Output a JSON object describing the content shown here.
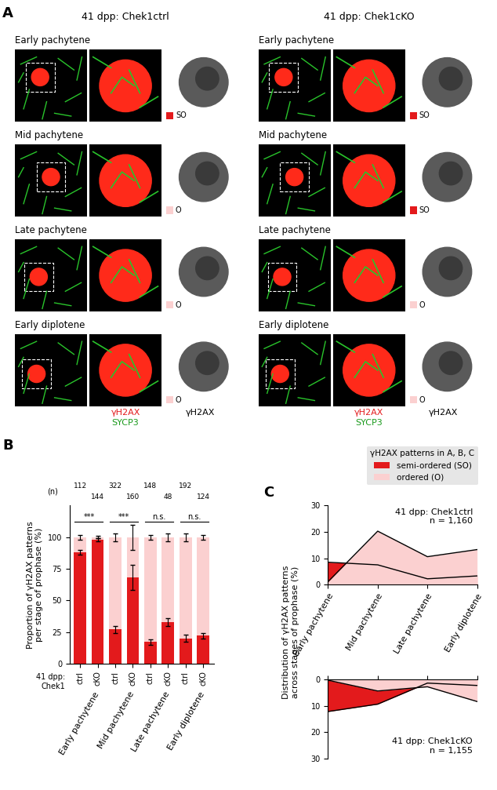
{
  "panel_labels": [
    "A",
    "B",
    "C"
  ],
  "panel_a": {
    "pattern_colors": {
      "SO": "#e31a1c",
      "O": "#fbd0d0"
    },
    "channels": [
      "γH2AX",
      "SYCP3"
    ],
    "gray_label": "γH2AX",
    "columns": [
      {
        "title": "41 dpp: Chek1ctrl",
        "rows": [
          {
            "stage": "Early pachytene",
            "pattern": "SO"
          },
          {
            "stage": "Mid pachytene",
            "pattern": "O"
          },
          {
            "stage": "Late pachytene",
            "pattern": "O"
          },
          {
            "stage": "Early diplotene",
            "pattern": "O"
          }
        ]
      },
      {
        "title": "41 dpp: Chek1cKO",
        "rows": [
          {
            "stage": "Early pachytene",
            "pattern": "SO"
          },
          {
            "stage": "Mid pachytene",
            "pattern": "SO"
          },
          {
            "stage": "Late pachytene",
            "pattern": "O"
          },
          {
            "stage": "Early diplotene",
            "pattern": "O"
          }
        ]
      }
    ]
  },
  "chart_data": [
    {
      "type": "bar",
      "stacked": true,
      "ylabel": "Proportion of γH2AX patterns\nper stage of prophase (%)",
      "categories": [
        "ctrl",
        "cKO",
        "ctrl",
        "cKO",
        "ctrl",
        "cKO",
        "ctrl",
        "cKO"
      ],
      "groups": [
        "Early pachytene",
        "Mid pachytene",
        "Late pachytene",
        "Early diplotene"
      ],
      "group_label": "41 dpp:\nChek1",
      "n_label": "(n)",
      "n": [
        112,
        144,
        322,
        160,
        148,
        48,
        192,
        124
      ],
      "significance": [
        "***",
        "***",
        "n.s.",
        "n.s."
      ],
      "ylim": [
        0,
        125
      ],
      "yticks": [
        0,
        25,
        50,
        75,
        100
      ],
      "legend": "upper right",
      "legend_title": "γH2AX patterns in A, B, C",
      "series": [
        {
          "name": "semi-ordered (SO)",
          "color": "#e31a1c",
          "values": [
            88,
            98,
            27,
            68,
            17,
            33,
            20,
            22
          ],
          "errors": [
            2,
            1,
            3,
            10,
            2,
            3,
            3,
            2
          ]
        },
        {
          "name": "ordered (O)",
          "color": "#fbd0d0",
          "values": [
            12,
            2,
            73,
            32,
            83,
            67,
            80,
            78
          ],
          "errors": [
            2,
            1,
            3,
            10,
            2,
            3,
            3,
            2
          ]
        }
      ]
    },
    {
      "type": "area",
      "title": "41 dpp: Chek1ctrl",
      "n_label": "n = 1,160",
      "ylabel": "Distribution of γH2AX patterns\nacross stages of prophase (%)",
      "categories": [
        "Early pachytene",
        "Mid pachytene",
        "Late pachytene",
        "Early diplotene"
      ],
      "ylim": [
        0,
        30
      ],
      "yticks": [
        0,
        10,
        20,
        30
      ],
      "series": [
        {
          "name": "semi-ordered (SO)",
          "color": "#e31a1c",
          "values": [
            8.5,
            7.5,
            2.2,
            3.3
          ]
        },
        {
          "name": "ordered (O)",
          "color": "#fbd0d0",
          "values": [
            1.1,
            20.3,
            10.6,
            13.3
          ]
        }
      ]
    },
    {
      "type": "area",
      "title": "41 dpp: Chek1cKO",
      "n_label": "n = 1,155",
      "tick_labels": "y",
      "categories": [
        "Early pachytene",
        "Mid pachytene",
        "Late pachytene",
        "Early diplotene"
      ],
      "ylim": [
        30,
        0
      ],
      "yticks": [
        0,
        10,
        20,
        30
      ],
      "series": [
        {
          "name": "semi-ordered (SO)",
          "color": "#e31a1c",
          "values": [
            12.2,
            9.4,
            1.4,
            2.3
          ]
        },
        {
          "name": "ordered (O)",
          "color": "#fbd0d0",
          "values": [
            0.3,
            4.4,
            2.8,
            8.4
          ]
        }
      ]
    }
  ]
}
